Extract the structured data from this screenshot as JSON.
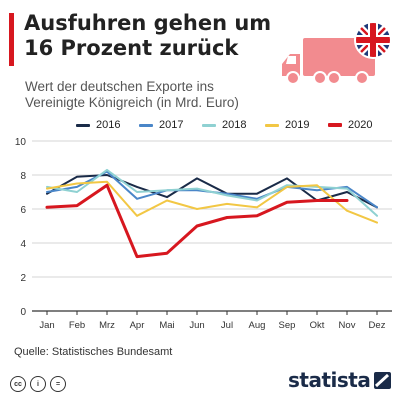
{
  "header": {
    "title_line1": "Ausfuhren gehen um",
    "title_line2": "16 Prozent zurück",
    "subtitle_line1": "Wert der deutschen Exporte ins",
    "subtitle_line2": "Vereinigte Königreich (in Mrd. Euro)"
  },
  "colors": {
    "accent": "#d7171f",
    "truck": "#f28b8f",
    "flag_blue": "#1e3a7a",
    "flag_red": "#d7171f",
    "grid": "#d5d5d5",
    "axis": "#333333"
  },
  "icons": {
    "truck": "truck-icon",
    "flag": "uk-flag-icon",
    "license": [
      "cc-icon",
      "by-icon",
      "nd-icon"
    ],
    "logo": "statista-logo-icon"
  },
  "footer": {
    "source": "Quelle: Statistisches Bundesamt",
    "license_labels": [
      "cc",
      "i",
      "="
    ],
    "brand": "statista"
  },
  "chart_data": {
    "type": "line",
    "categories": [
      "Jan",
      "Feb",
      "Mrz",
      "Apr",
      "Mai",
      "Jun",
      "Jul",
      "Aug",
      "Sep",
      "Okt",
      "Nov",
      "Dez"
    ],
    "ylim": [
      0,
      10
    ],
    "yticks": [
      0,
      2,
      4,
      6,
      8,
      10
    ],
    "grid": true,
    "legend_position": "top",
    "series": [
      {
        "name": "2016",
        "color": "#1a2b48",
        "width": 2,
        "values": [
          6.9,
          7.9,
          8.0,
          7.3,
          6.7,
          7.8,
          6.9,
          6.9,
          7.8,
          6.5,
          7.0,
          6.1
        ]
      },
      {
        "name": "2017",
        "color": "#4a86c8",
        "width": 2,
        "values": [
          7.0,
          7.3,
          8.2,
          6.6,
          7.1,
          7.1,
          6.9,
          6.6,
          7.3,
          7.1,
          7.3,
          6.1
        ]
      },
      {
        "name": "2018",
        "color": "#8fd1d2",
        "width": 2,
        "values": [
          7.3,
          7.0,
          8.3,
          7.0,
          7.1,
          7.2,
          6.8,
          6.5,
          7.4,
          7.3,
          7.2,
          5.6
        ]
      },
      {
        "name": "2019",
        "color": "#f2c744",
        "width": 2,
        "values": [
          7.2,
          7.5,
          7.6,
          5.6,
          6.5,
          6.0,
          6.3,
          6.1,
          7.3,
          7.4,
          5.9,
          5.2
        ]
      },
      {
        "name": "2020",
        "color": "#d7171f",
        "width": 3,
        "values": [
          6.1,
          6.2,
          7.4,
          3.2,
          3.4,
          5.0,
          5.5,
          5.6,
          6.4,
          6.5,
          6.5,
          null
        ]
      }
    ]
  }
}
